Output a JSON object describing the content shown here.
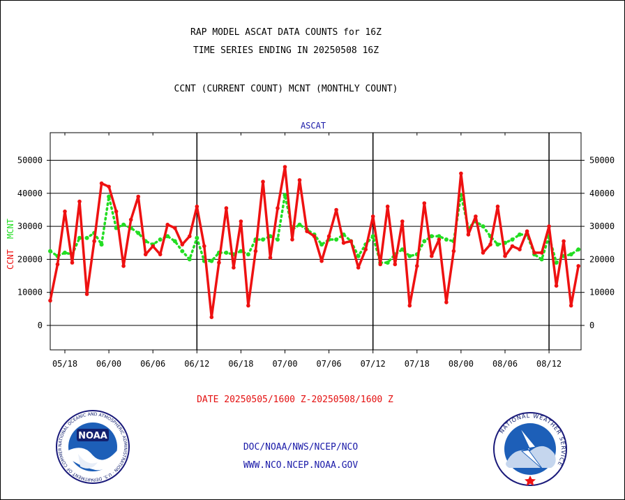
{
  "header": {
    "title_line1": "RAP MODEL ASCAT DATA COUNTS for 16Z",
    "title_line2": "TIME SERIES ENDING IN 20250508 16Z",
    "legend_line": "CCNT (CURRENT COUNT) MCNT (MONTHLY COUNT)"
  },
  "footer": {
    "date_range": "DATE 20250505/1600 Z-20250508/1600 Z",
    "org_line": "DOC/NOAA/NWS/NCEP/NCO",
    "url_line": "WWW.NCO.NCEP.NOAA.GOV"
  },
  "logos": {
    "noaa": {
      "name": "NOAA",
      "ring_text": "NATIONAL OCEANIC AND ATMOSPHERIC ADMINISTRATION · U.S. DEPARTMENT OF COMMERCE"
    },
    "nws": {
      "ring_text": "NATIONAL WEATHER SERVICE"
    }
  },
  "colors": {
    "ccnt": "#ee1111",
    "mcnt": "#22dd22",
    "label_blue": "#1a1aa8"
  },
  "chart_data": {
    "type": "line",
    "title": "ASCAT",
    "ylabel_left": "CCNT",
    "ylabel_right": "MCNT",
    "ylim": [
      -7500,
      58000
    ],
    "yticks": [
      0,
      10000,
      20000,
      30000,
      40000,
      50000
    ],
    "ytick_labels": [
      "0",
      "10000",
      "20000",
      "30000",
      "40000",
      "50000"
    ],
    "xticks": [
      "05/18",
      "06/00",
      "06/06",
      "06/12",
      "06/18",
      "07/00",
      "07/06",
      "07/12",
      "07/18",
      "08/00",
      "08/06",
      "08/12"
    ],
    "x_hours_start": 0,
    "x_hours_end": 72,
    "day_boundaries_hours": [
      20,
      44,
      68
    ],
    "grid_y": true,
    "series": [
      {
        "name": "CCNT",
        "values": [
          7500,
          18500,
          34500,
          19000,
          37500,
          9500,
          25500,
          43000,
          42000,
          34500,
          18000,
          32000,
          39000,
          21500,
          24000,
          21500,
          30500,
          29500,
          24500,
          27000,
          36000,
          24000,
          2500,
          19000,
          35500,
          17500,
          31500,
          6000,
          22500,
          43500,
          20500,
          35500,
          48000,
          26000,
          44000,
          28500,
          27000,
          19500,
          27000,
          35000,
          25000,
          25500,
          17500,
          23000,
          33000,
          18500,
          36000,
          18500,
          31500,
          6000,
          18000,
          37000,
          21000,
          26000,
          7000,
          22500,
          46000,
          27500,
          33000,
          22000,
          24500,
          36000,
          21000,
          24000,
          23000,
          28500,
          22000,
          22000,
          30000,
          12000,
          25500,
          6000,
          18000
        ]
      },
      {
        "name": "MCNT",
        "values": [
          22500,
          21000,
          22000,
          21500,
          26500,
          26500,
          28000,
          24500,
          39000,
          29500,
          30500,
          29500,
          28000,
          25500,
          24500,
          26000,
          27000,
          25500,
          22500,
          20000,
          26500,
          19500,
          19500,
          22000,
          22000,
          21500,
          22500,
          21500,
          26000,
          26000,
          27000,
          26000,
          39500,
          29000,
          30500,
          29000,
          27500,
          24500,
          26000,
          26000,
          27500,
          25500,
          21000,
          24500,
          27000,
          19000,
          19000,
          21500,
          23000,
          21000,
          21500,
          25500,
          27000,
          27000,
          26000,
          25500,
          39500,
          29500,
          31500,
          30000,
          27000,
          24500,
          25000,
          26000,
          27500,
          27500,
          21500,
          20000,
          27000,
          19000,
          21000,
          21500,
          23000
        ]
      }
    ]
  }
}
